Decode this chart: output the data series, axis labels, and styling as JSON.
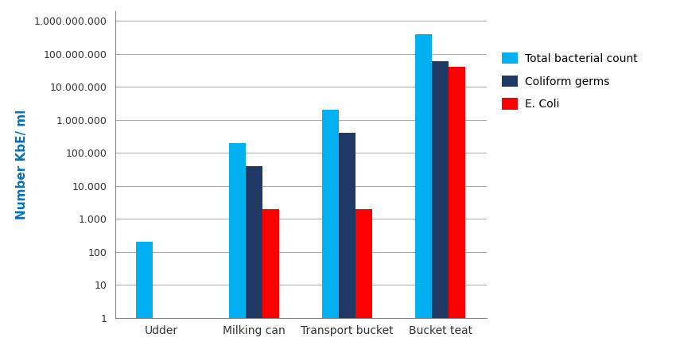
{
  "categories": [
    "Udder",
    "Milking can",
    "Transport bucket",
    "Bucket teat"
  ],
  "series": [
    {
      "label": "Total bacterial count",
      "color": "#00B0F0",
      "values": [
        200,
        200000,
        2000000,
        400000000
      ]
    },
    {
      "label": "Coliform germs",
      "color": "#1F3864",
      "values": [
        null,
        40000,
        400000,
        60000000
      ]
    },
    {
      "label": "E. Coli",
      "color": "#FF0000",
      "values": [
        null,
        2000,
        2000,
        40000000
      ]
    }
  ],
  "ylabel": "Number KbE/ ml",
  "ylabel_color": "#0070C0",
  "ylim_min": 1,
  "ylim_max": 2000000000,
  "yticks": [
    1,
    10,
    100,
    1000,
    10000,
    100000,
    1000000,
    10000000,
    100000000,
    1000000000
  ],
  "ytick_labels": [
    "1",
    "10",
    "100",
    "1.000",
    "10.000",
    "100.000",
    "1.000.000",
    "10.000.000",
    "100.000.000",
    "1.000.000.000"
  ],
  "bar_width": 0.18,
  "background_color": "#FFFFFF",
  "grid_color": "#AAAAAA",
  "legend_fontsize": 10
}
